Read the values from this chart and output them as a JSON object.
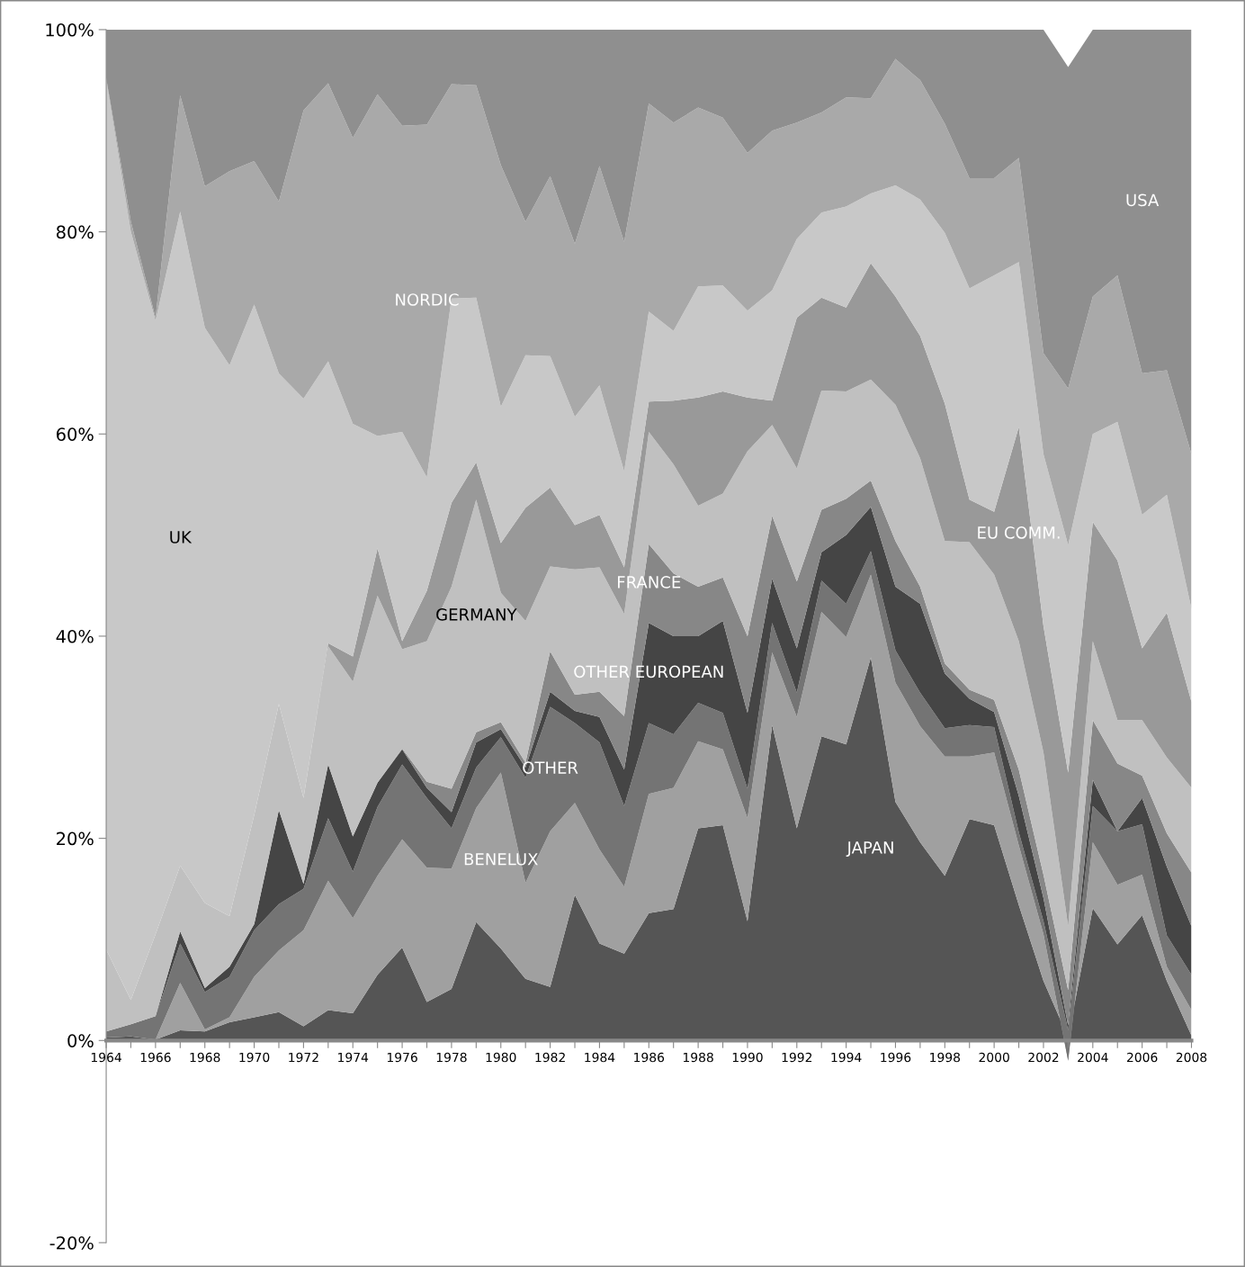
{
  "chart_data": {
    "type": "area",
    "stacked": true,
    "legend": false,
    "grid": false,
    "x": [
      1964,
      1965,
      1966,
      1967,
      1968,
      1969,
      1970,
      1971,
      1972,
      1973,
      1974,
      1975,
      1976,
      1977,
      1978,
      1979,
      1980,
      1981,
      1982,
      1983,
      1984,
      1985,
      1986,
      1987,
      1988,
      1989,
      1990,
      1991,
      1992,
      1993,
      1994,
      1995,
      1996,
      1997,
      1998,
      1999,
      2000,
      2001,
      2002,
      2003,
      2004,
      2005,
      2006,
      2007,
      2008
    ],
    "xlim": [
      1964,
      2008
    ],
    "xticks": [
      1964,
      {
        "value": 1965,
        "label": null
      },
      1966,
      {
        "value": 1967,
        "label": null
      },
      1968,
      {
        "value": 1969,
        "label": null
      },
      1970,
      {
        "value": 1971,
        "label": null
      },
      1972,
      {
        "value": 1973,
        "label": null
      },
      1974,
      {
        "value": 1975,
        "label": null
      },
      1976,
      {
        "value": 1977,
        "label": null
      },
      1978,
      {
        "value": 1979,
        "label": null
      },
      1980,
      {
        "value": 1981,
        "label": null
      },
      1982,
      {
        "value": 1983,
        "label": null
      },
      1984,
      {
        "value": 1985,
        "label": null
      },
      1986,
      {
        "value": 1987,
        "label": null
      },
      1988,
      {
        "value": 1989,
        "label": null
      },
      1990,
      {
        "value": 1991,
        "label": null
      },
      1992,
      {
        "value": 1993,
        "label": null
      },
      1994,
      {
        "value": 1995,
        "label": null
      },
      1996,
      {
        "value": 1997,
        "label": null
      },
      1998,
      {
        "value": 1999,
        "label": null
      },
      2000,
      {
        "value": 2001,
        "label": null
      },
      2002,
      {
        "value": 2003,
        "label": null
      },
      2004,
      {
        "value": 2005,
        "label": null
      },
      2006,
      {
        "value": 2007,
        "label": null
      },
      2008
    ],
    "ylim": [
      -20,
      100
    ],
    "yticks": [
      {
        "value": -20,
        "label": "-20%"
      },
      {
        "value": 0,
        "label": "0%"
      },
      {
        "value": 20,
        "label": "20%"
      },
      {
        "value": 40,
        "label": "40%"
      },
      {
        "value": 60,
        "label": "60%"
      },
      {
        "value": 80,
        "label": "80%"
      },
      {
        "value": 100,
        "label": "100%"
      }
    ],
    "series": [
      {
        "name": "JAPAN",
        "color": "#555555",
        "values": [
          0.3,
          0.4,
          0.1,
          1.0,
          0.9,
          1.8,
          2.3,
          2.8,
          1.4,
          3.0,
          2.7,
          6.5,
          9.2,
          3.8,
          5.1,
          11.7,
          9.1,
          6.1,
          5.3,
          14.4,
          9.6,
          8.6,
          12.6,
          13.0,
          21.0,
          21.3,
          11.8,
          31.2,
          21.0,
          30.1,
          29.3,
          37.9,
          23.6,
          19.6,
          16.3,
          21.9,
          21.3,
          13.4,
          5.9,
          0.3,
          13.1,
          9.5,
          12.4,
          5.9,
          0.5
        ]
      },
      {
        "name": "BENELUX",
        "color": "#a0a0a0",
        "values": [
          0,
          0,
          0,
          4.7,
          0.2,
          0.5,
          4.0,
          6.1,
          9.5,
          12.8,
          9.4,
          9.8,
          10.7,
          13.3,
          11.9,
          11.3,
          17.4,
          9.5,
          15.4,
          9.1,
          9.3,
          6.6,
          11.8,
          12.0,
          8.6,
          7.5,
          10.2,
          7.2,
          11.0,
          12.3,
          10.6,
          8.2,
          11.8,
          11.5,
          11.8,
          6.2,
          7.2,
          5.9,
          4.6,
          -2.3,
          6.5,
          5.9,
          4.0,
          1.4,
          2.5
        ]
      },
      {
        "name": "OTHER",
        "color": "#747474",
        "values": [
          0.6,
          1.2,
          2.3,
          3.9,
          3.7,
          4.0,
          4.6,
          4.6,
          4.1,
          6.2,
          4.6,
          6.8,
          7.4,
          6.9,
          4.0,
          4.0,
          3.5,
          10.4,
          12.3,
          7.9,
          10.6,
          8.0,
          7.0,
          5.3,
          3.8,
          3.6,
          2.9,
          2.9,
          2.4,
          3.1,
          3.3,
          2.3,
          3.2,
          3.3,
          2.8,
          3.1,
          2.5,
          1.3,
          1.3,
          3.0,
          3.6,
          5.3,
          5.0,
          3.1,
          3.5
        ]
      },
      {
        "name": "OTHER EUROPEAN",
        "color": "#454545",
        "values": [
          0,
          0,
          0,
          1.2,
          0.4,
          1.0,
          0.6,
          9.3,
          0.5,
          5.3,
          3.5,
          2.4,
          1.5,
          1.0,
          1.6,
          2.5,
          0.8,
          1.0,
          1.5,
          1.2,
          2.5,
          3.6,
          9.9,
          9.7,
          6.6,
          9.1,
          7.5,
          4.4,
          4.4,
          2.8,
          6.8,
          4.4,
          6.3,
          8.8,
          5.4,
          2.6,
          1.5,
          3.6,
          2.3,
          0.5,
          2.6,
          0,
          2.6,
          6.8,
          4.8
        ]
      },
      {
        "name": "FRANCE",
        "color": "#878787",
        "values": [
          0,
          0,
          0,
          0,
          0,
          0,
          0,
          0,
          0,
          0,
          0,
          0,
          0.1,
          0.6,
          2.3,
          1.0,
          0.7,
          0.5,
          4.0,
          1.6,
          2.5,
          5.3,
          7.8,
          6.2,
          4.9,
          4.3,
          7.6,
          6.2,
          6.6,
          4.2,
          3.6,
          2.6,
          4.5,
          1.7,
          1.0,
          0.9,
          1.2,
          2.6,
          2.3,
          3.5,
          5.9,
          6.7,
          2.2,
          3.3,
          5.3
        ]
      },
      {
        "name": "GERMANY",
        "color": "#c0c0c0",
        "values": [
          8.1,
          2.4,
          8.1,
          6.5,
          8.4,
          5.0,
          10.8,
          10.5,
          8.5,
          11.7,
          15.3,
          18.5,
          9.8,
          13.9,
          20.0,
          23.0,
          12.8,
          14.0,
          8.4,
          12.4,
          12.3,
          10.1,
          11.1,
          10.8,
          8.0,
          8.3,
          18.3,
          9.0,
          11.2,
          11.8,
          10.6,
          10.0,
          13.5,
          12.7,
          12.1,
          14.6,
          12.4,
          12.7,
          12.1,
          6.3,
          7.8,
          4.3,
          5.5,
          7.5,
          8.4
        ]
      },
      {
        "name": "EU COMM.",
        "color": "#999999",
        "values": [
          0,
          0,
          0,
          0,
          0,
          0,
          0,
          0,
          0,
          0.3,
          2.5,
          4.7,
          0.8,
          5.0,
          8.3,
          3.7,
          4.9,
          11.2,
          7.8,
          4.4,
          5.2,
          4.6,
          3.0,
          6.3,
          10.7,
          10.1,
          5.3,
          2.4,
          14.9,
          9.2,
          8.3,
          11.5,
          10.7,
          12.1,
          13.6,
          4.2,
          6.2,
          21.2,
          12.5,
          15.2,
          11.8,
          15.8,
          7.1,
          14.3,
          8.5
        ]
      },
      {
        "name": "UK",
        "color": "#c8c8c8",
        "values": [
          86.0,
          76.0,
          60.7,
          64.7,
          56.9,
          54.5,
          50.5,
          32.7,
          39.5,
          27.9,
          23.0,
          11.1,
          20.7,
          11.2,
          20.2,
          16.3,
          13.5,
          15.1,
          13.0,
          10.7,
          12.8,
          9.5,
          8.9,
          6.9,
          11.0,
          10.5,
          8.6,
          10.9,
          7.8,
          8.4,
          10.0,
          6.9,
          11.0,
          13.5,
          16.9,
          20.9,
          23.4,
          16.3,
          17.0,
          22.5,
          8.7,
          13.7,
          13.2,
          11.7,
          9.2
        ]
      },
      {
        "name": "NORDIC",
        "color": "#a9a9a9",
        "values": [
          0.2,
          1.0,
          0.3,
          11.5,
          14.0,
          19.2,
          14.2,
          17.0,
          28.5,
          27.5,
          28.3,
          33.8,
          30.3,
          34.9,
          21.2,
          21.0,
          23.9,
          13.2,
          17.8,
          17.1,
          21.7,
          22.7,
          20.6,
          20.6,
          17.7,
          16.6,
          15.6,
          15.8,
          11.5,
          9.9,
          10.8,
          9.4,
          12.5,
          11.8,
          10.8,
          10.9,
          9.6,
          10.3,
          10.0,
          15.5,
          13.6,
          14.5,
          14.0,
          12.3,
          15.3
        ]
      },
      {
        "name": "USA",
        "color": "#8f8f8f",
        "values": [
          4.8,
          19.0,
          28.5,
          6.5,
          15.5,
          14.0,
          13.0,
          17.0,
          8.0,
          5.3,
          10.7,
          6.4,
          9.5,
          9.4,
          5.4,
          5.5,
          13.4,
          19.0,
          14.5,
          21.2,
          13.5,
          21.0,
          7.3,
          9.2,
          7.7,
          8.7,
          12.2,
          10.0,
          9.2,
          8.2,
          6.7,
          6.8,
          2.9,
          5.0,
          9.3,
          14.7,
          14.7,
          12.7,
          32.0,
          31.8,
          26.4,
          24.3,
          34.0,
          33.7,
          42.0
        ]
      }
    ]
  }
}
